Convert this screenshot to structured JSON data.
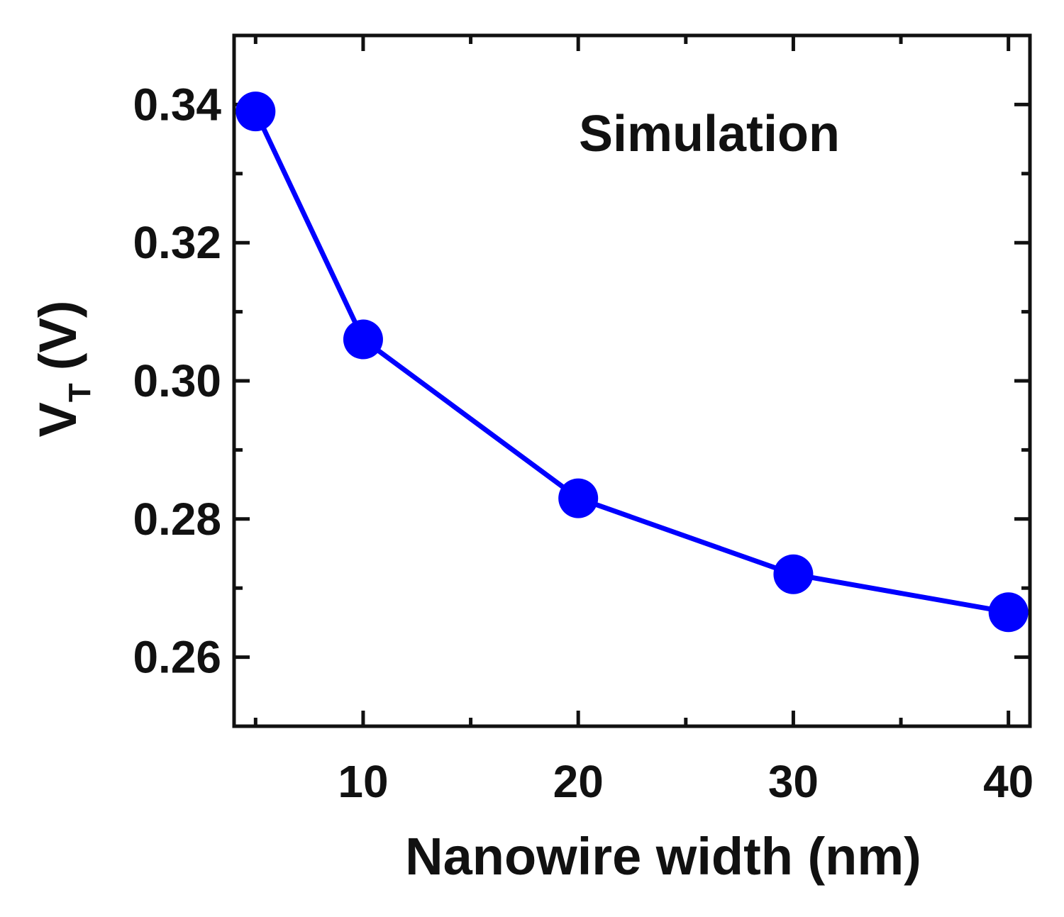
{
  "chart_data": {
    "type": "line",
    "title": "",
    "annotation": "Simulation",
    "xlabel": "Nanowire width  (nm)",
    "ylabel": {
      "main": "V",
      "subscript": "T",
      "unit": "(V)"
    },
    "xlim": [
      4,
      41
    ],
    "ylim": [
      0.25,
      0.35
    ],
    "x_ticks": [
      10,
      20,
      30,
      40
    ],
    "x_tick_labels": [
      "10",
      "20",
      "30",
      "40"
    ],
    "x_minor_ticks": [
      5,
      15,
      25,
      35
    ],
    "y_ticks": [
      0.26,
      0.28,
      0.3,
      0.32,
      0.34
    ],
    "y_tick_labels": [
      "0.26",
      "0.28",
      "0.30",
      "0.32",
      "0.34"
    ],
    "y_minor_ticks": [
      0.27,
      0.29,
      0.31,
      0.33
    ],
    "grid": false,
    "series": [
      {
        "name": "Simulation",
        "color": "#0000ff",
        "marker": "circle",
        "x": [
          5,
          10,
          20,
          30,
          40
        ],
        "y": [
          0.339,
          0.306,
          0.283,
          0.272,
          0.2665
        ]
      }
    ]
  }
}
